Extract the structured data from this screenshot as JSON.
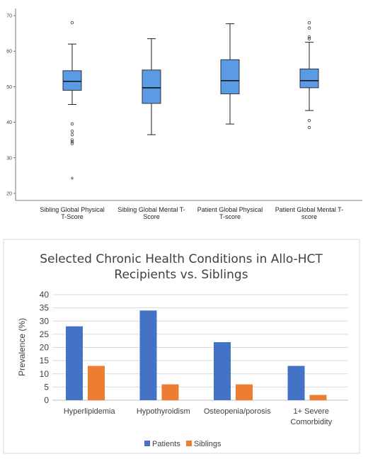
{
  "chart_data": [
    {
      "type": "box",
      "ylim": [
        18,
        72
      ],
      "yticks": [
        20,
        30,
        40,
        50,
        60,
        70
      ],
      "grid": false,
      "box_color": "#5b9be6",
      "categories": [
        [
          "Sibling Global Physical",
          "T-Score"
        ],
        [
          "Sibling Global Mental T-",
          "Score"
        ],
        [
          "Patient Global Physical",
          "T-score"
        ],
        [
          "Patient Global Mental T-",
          "score"
        ]
      ],
      "boxes": [
        {
          "whisker_low": 45,
          "q1": 49,
          "median": 51.5,
          "q3": 54.5,
          "whisker_high": 62,
          "outliers": [
            68,
            39.5,
            37.5,
            36.5,
            35,
            34.5,
            34
          ],
          "extremes": [
            24
          ]
        },
        {
          "whisker_low": 36.5,
          "q1": 45.3,
          "median": 49.7,
          "q3": 54.7,
          "whisker_high": 63.5,
          "outliers": [],
          "extremes": []
        },
        {
          "whisker_low": 39.5,
          "q1": 48,
          "median": 51.7,
          "q3": 57.6,
          "whisker_high": 67.7,
          "outliers": [],
          "extremes": []
        },
        {
          "whisker_low": 43.3,
          "q1": 49.7,
          "median": 51.7,
          "q3": 55,
          "whisker_high": 62.5,
          "outliers": [
            68,
            66.5,
            64,
            63.5,
            40.5,
            38.5
          ],
          "extremes": []
        }
      ]
    },
    {
      "type": "bar",
      "title": [
        "Selected Chronic Health Conditions in Allo-HCT",
        "Recipients vs. Siblings"
      ],
      "ylabel": "Prevalence (%)",
      "ylim": [
        0,
        40
      ],
      "yticks": [
        0,
        5,
        10,
        15,
        20,
        25,
        30,
        35,
        40
      ],
      "grid": true,
      "legend_position": "bottom",
      "categories": [
        [
          "Hyperlipidemia"
        ],
        [
          "Hypothyroidism"
        ],
        [
          "Osteopenia/porosis"
        ],
        [
          "1+ Severe",
          "Comorbidity"
        ]
      ],
      "series": [
        {
          "name": "Patients",
          "color": "#4472c4",
          "values": [
            28,
            34,
            22,
            13
          ]
        },
        {
          "name": "Siblings",
          "color": "#ed7d31",
          "values": [
            13,
            6,
            6,
            2
          ]
        }
      ]
    }
  ]
}
